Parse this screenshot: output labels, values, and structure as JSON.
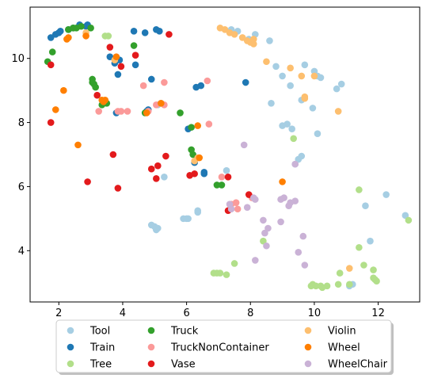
{
  "chart_data": {
    "type": "scatter",
    "xlim": [
      1.1,
      13.3
    ],
    "ylim": [
      2.4,
      11.6
    ],
    "x_ticks": [
      2,
      4,
      6,
      8,
      10,
      12
    ],
    "y_ticks": [
      4,
      6,
      8,
      10
    ],
    "grid": false,
    "legend_position": "bottom-center",
    "series": [
      {
        "name": "Tool",
        "color": "#a6cee3",
        "points": [
          [
            4.9,
            4.8
          ],
          [
            5.0,
            4.75
          ],
          [
            5.1,
            4.7
          ],
          [
            5.05,
            4.65
          ],
          [
            5.9,
            5.0
          ],
          [
            6.0,
            5.0
          ],
          [
            6.05,
            5.0
          ],
          [
            6.35,
            5.2
          ],
          [
            6.35,
            5.25
          ],
          [
            5.3,
            6.3
          ],
          [
            7.25,
            6.5
          ],
          [
            9.6,
            6.95
          ],
          [
            9.5,
            6.85
          ],
          [
            9.4,
            6.7
          ],
          [
            10.1,
            7.65
          ],
          [
            9.0,
            7.9
          ],
          [
            9.15,
            7.95
          ],
          [
            9.3,
            7.8
          ],
          [
            8.65,
            8.6
          ],
          [
            9.6,
            8.7
          ],
          [
            9.95,
            8.45
          ],
          [
            11.2,
            2.95
          ],
          [
            11.1,
            2.9
          ],
          [
            11.6,
            5.4
          ],
          [
            11.75,
            4.3
          ],
          [
            12.25,
            5.75
          ],
          [
            12.85,
            5.1
          ],
          [
            7.4,
            10.9
          ],
          [
            7.6,
            10.85
          ],
          [
            7.95,
            10.6
          ],
          [
            8.15,
            10.75
          ],
          [
            8.6,
            10.55
          ],
          [
            8.8,
            9.75
          ],
          [
            9.0,
            9.45
          ],
          [
            9.25,
            9.15
          ],
          [
            9.7,
            9.8
          ],
          [
            10.0,
            9.6
          ],
          [
            10.1,
            9.45
          ],
          [
            10.2,
            9.4
          ],
          [
            10.7,
            9.05
          ],
          [
            10.85,
            9.2
          ],
          [
            5.1,
            8.55
          ],
          [
            5.2,
            8.6
          ]
        ]
      },
      {
        "name": "Train",
        "color": "#1f78b4",
        "points": [
          [
            1.75,
            10.65
          ],
          [
            1.9,
            10.75
          ],
          [
            2.0,
            10.8
          ],
          [
            2.05,
            10.85
          ],
          [
            2.3,
            10.9
          ],
          [
            2.45,
            10.95
          ],
          [
            2.65,
            11.05
          ],
          [
            2.85,
            11.0
          ],
          [
            2.9,
            11.05
          ],
          [
            4.35,
            10.85
          ],
          [
            4.7,
            10.8
          ],
          [
            5.05,
            10.9
          ],
          [
            5.15,
            10.85
          ],
          [
            3.6,
            10.05
          ],
          [
            3.75,
            9.85
          ],
          [
            3.9,
            9.95
          ],
          [
            4.4,
            9.8
          ],
          [
            3.85,
            9.5
          ],
          [
            4.9,
            9.35
          ],
          [
            6.3,
            9.1
          ],
          [
            6.45,
            9.15
          ],
          [
            7.85,
            9.25
          ],
          [
            3.8,
            8.3
          ],
          [
            4.75,
            8.35
          ],
          [
            4.8,
            8.4
          ],
          [
            6.05,
            7.8
          ],
          [
            6.25,
            6.75
          ],
          [
            6.55,
            6.4
          ],
          [
            6.55,
            6.45
          ]
        ]
      },
      {
        "name": "Tree",
        "color": "#b2df8a",
        "points": [
          [
            3.45,
            10.7
          ],
          [
            3.55,
            10.7
          ],
          [
            9.35,
            7.5
          ],
          [
            8.4,
            4.3
          ],
          [
            7.5,
            3.6
          ],
          [
            6.85,
            3.3
          ],
          [
            6.95,
            3.3
          ],
          [
            7.05,
            3.3
          ],
          [
            7.25,
            3.25
          ],
          [
            9.9,
            2.9
          ],
          [
            9.95,
            2.95
          ],
          [
            10.05,
            2.9
          ],
          [
            10.2,
            2.9
          ],
          [
            10.25,
            2.85
          ],
          [
            10.4,
            2.9
          ],
          [
            10.75,
            2.95
          ],
          [
            11.1,
            2.95
          ],
          [
            10.8,
            3.3
          ],
          [
            11.4,
            4.1
          ],
          [
            11.55,
            3.55
          ],
          [
            11.85,
            3.4
          ],
          [
            11.9,
            3.1
          ],
          [
            11.95,
            3.05
          ],
          [
            11.85,
            3.15
          ],
          [
            11.4,
            5.9
          ],
          [
            12.95,
            4.95
          ]
        ]
      },
      {
        "name": "Truck",
        "color": "#33a02c",
        "points": [
          [
            1.65,
            9.9
          ],
          [
            1.8,
            10.2
          ],
          [
            2.3,
            10.9
          ],
          [
            2.45,
            10.95
          ],
          [
            2.55,
            10.95
          ],
          [
            2.7,
            11.0
          ],
          [
            3.0,
            10.95
          ],
          [
            3.05,
            9.35
          ],
          [
            3.1,
            9.2
          ],
          [
            3.05,
            9.25
          ],
          [
            3.15,
            9.1
          ],
          [
            3.35,
            8.55
          ],
          [
            3.4,
            8.6
          ],
          [
            3.5,
            8.6
          ],
          [
            4.35,
            10.4
          ],
          [
            4.7,
            8.3
          ],
          [
            5.8,
            8.3
          ],
          [
            6.15,
            7.85
          ],
          [
            6.15,
            7.15
          ],
          [
            6.2,
            7.0
          ],
          [
            6.95,
            6.05
          ],
          [
            7.1,
            6.05
          ]
        ]
      },
      {
        "name": "TruckNonContainer",
        "color": "#fb9a99",
        "points": [
          [
            3.25,
            8.35
          ],
          [
            3.85,
            8.35
          ],
          [
            3.95,
            8.35
          ],
          [
            4.65,
            9.15
          ],
          [
            4.8,
            8.35
          ],
          [
            5.05,
            8.55
          ],
          [
            5.3,
            9.25
          ],
          [
            5.3,
            8.55
          ],
          [
            6.65,
            9.3
          ],
          [
            6.7,
            7.95
          ],
          [
            7.1,
            6.3
          ],
          [
            7.4,
            5.45
          ],
          [
            7.55,
            5.5
          ],
          [
            7.6,
            5.3
          ],
          [
            8.05,
            5.65
          ],
          [
            4.15,
            8.35
          ]
        ]
      },
      {
        "name": "Vase",
        "color": "#e31a1c",
        "points": [
          [
            1.75,
            9.8
          ],
          [
            1.75,
            8.0
          ],
          [
            3.6,
            10.35
          ],
          [
            3.95,
            9.75
          ],
          [
            4.4,
            10.1
          ],
          [
            5.45,
            10.75
          ],
          [
            3.2,
            8.85
          ],
          [
            3.7,
            7.0
          ],
          [
            3.85,
            5.95
          ],
          [
            2.9,
            6.15
          ],
          [
            4.9,
            6.55
          ],
          [
            5.05,
            6.25
          ],
          [
            5.1,
            6.65
          ],
          [
            5.35,
            6.95
          ],
          [
            6.1,
            6.35
          ],
          [
            6.25,
            6.4
          ],
          [
            7.3,
            6.3
          ],
          [
            7.3,
            5.25
          ],
          [
            7.95,
            5.75
          ]
        ]
      },
      {
        "name": "Violin",
        "color": "#fdbf6f",
        "points": [
          [
            2.85,
            10.8
          ],
          [
            3.75,
            9.95
          ],
          [
            7.05,
            10.95
          ],
          [
            7.2,
            10.9
          ],
          [
            7.35,
            10.8
          ],
          [
            7.5,
            10.75
          ],
          [
            7.75,
            10.65
          ],
          [
            7.9,
            10.55
          ],
          [
            8.0,
            10.5
          ],
          [
            8.1,
            10.45
          ],
          [
            8.1,
            10.6
          ],
          [
            8.5,
            9.9
          ],
          [
            9.25,
            9.7
          ],
          [
            9.6,
            9.45
          ],
          [
            9.7,
            8.8
          ],
          [
            9.7,
            8.75
          ],
          [
            10.0,
            9.45
          ],
          [
            10.75,
            8.35
          ],
          [
            11.1,
            3.45
          ],
          [
            6.25,
            6.8
          ],
          [
            6.35,
            6.9
          ]
        ]
      },
      {
        "name": "Wheel",
        "color": "#ff7f00",
        "points": [
          [
            2.25,
            10.6
          ],
          [
            2.3,
            10.65
          ],
          [
            2.85,
            10.7
          ],
          [
            3.8,
            10.05
          ],
          [
            2.15,
            9.0
          ],
          [
            1.9,
            8.4
          ],
          [
            2.6,
            7.3
          ],
          [
            3.35,
            8.7
          ],
          [
            3.4,
            8.65
          ],
          [
            3.45,
            8.7
          ],
          [
            4.75,
            8.3
          ],
          [
            5.2,
            8.6
          ],
          [
            6.35,
            7.9
          ],
          [
            6.4,
            6.9
          ],
          [
            9.0,
            6.15
          ]
        ]
      },
      {
        "name": "WheelChair",
        "color": "#cab2d6",
        "points": [
          [
            7.8,
            7.3
          ],
          [
            9.4,
            6.7
          ],
          [
            9.65,
            4.45
          ],
          [
            9.5,
            3.95
          ],
          [
            9.7,
            3.55
          ],
          [
            9.05,
            5.65
          ],
          [
            8.95,
            5.6
          ],
          [
            9.2,
            5.4
          ],
          [
            9.25,
            5.5
          ],
          [
            9.4,
            5.55
          ],
          [
            8.95,
            4.9
          ],
          [
            8.55,
            4.7
          ],
          [
            8.45,
            4.55
          ],
          [
            8.5,
            4.15
          ],
          [
            8.4,
            4.95
          ],
          [
            8.15,
            3.7
          ],
          [
            8.1,
            5.65
          ],
          [
            8.15,
            5.6
          ],
          [
            7.9,
            5.35
          ],
          [
            7.35,
            5.45
          ],
          [
            7.4,
            5.3
          ]
        ]
      }
    ]
  }
}
